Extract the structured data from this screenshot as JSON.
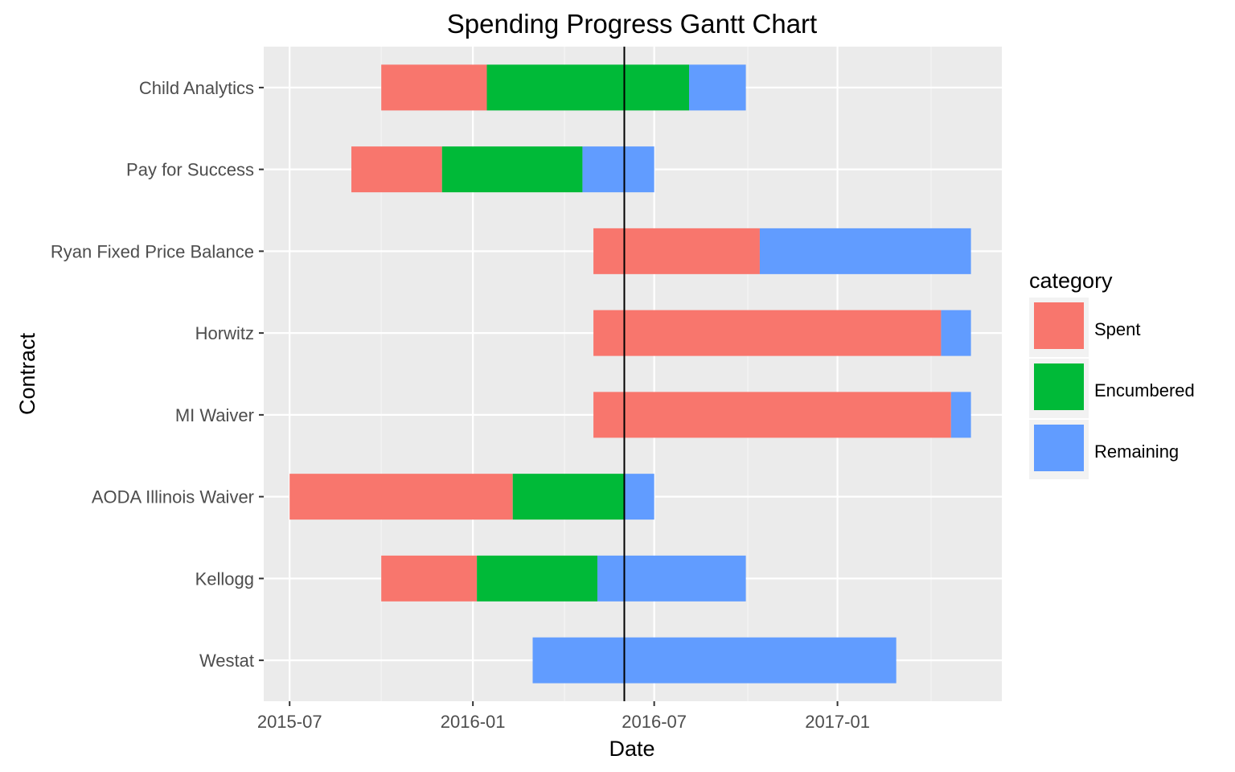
{
  "chart_data": {
    "type": "bar",
    "subtype": "gantt",
    "title": "Spending Progress Gantt Chart",
    "xlabel": "Date",
    "ylabel": "Contract",
    "x_ticks": [
      "2015-07",
      "2016-01",
      "2016-07",
      "2017-01"
    ],
    "xlim": [
      "2015-06-05",
      "2017-06-15"
    ],
    "reference_line": "2016-06-01",
    "grid": true,
    "legend": {
      "title": "category",
      "placement": "right",
      "entries": [
        {
          "name": "Spent",
          "color": "#F8766D"
        },
        {
          "name": "Encumbered",
          "color": "#00BA38"
        },
        {
          "name": "Remaining",
          "color": "#619CFF"
        }
      ]
    },
    "categories": [
      "Child Analytics",
      "Pay for Success",
      "Ryan Fixed Price Balance",
      "Horwitz",
      "MI Waiver",
      "AODA Illinois Waiver",
      "Kellogg",
      "Westat"
    ],
    "series": [
      {
        "name": "Spent",
        "values": [
          [
            "2015-10-01",
            "2016-01-15"
          ],
          [
            "2015-09-01",
            "2015-12-01"
          ],
          [
            "2016-05-01",
            "2016-10-15"
          ],
          [
            "2016-05-01",
            "2017-04-15"
          ],
          [
            "2016-05-01",
            "2017-04-25"
          ],
          [
            "2015-07-01",
            "2016-02-10"
          ],
          [
            "2015-10-01",
            "2016-01-05"
          ],
          null
        ]
      },
      {
        "name": "Encumbered",
        "values": [
          [
            "2016-01-15",
            "2016-08-05"
          ],
          [
            "2015-12-01",
            "2016-04-20"
          ],
          null,
          null,
          null,
          [
            "2016-02-10",
            "2016-06-01"
          ],
          [
            "2016-01-05",
            "2016-05-05"
          ],
          null
        ]
      },
      {
        "name": "Remaining",
        "values": [
          [
            "2016-08-05",
            "2016-10-01"
          ],
          [
            "2016-04-20",
            "2016-07-01"
          ],
          [
            "2016-10-15",
            "2017-05-15"
          ],
          [
            "2017-04-15",
            "2017-05-15"
          ],
          [
            "2017-04-25",
            "2017-05-15"
          ],
          [
            "2016-06-01",
            "2016-07-01"
          ],
          [
            "2016-05-05",
            "2016-10-01"
          ],
          [
            "2016-03-01",
            "2017-03-01"
          ]
        ]
      }
    ]
  }
}
